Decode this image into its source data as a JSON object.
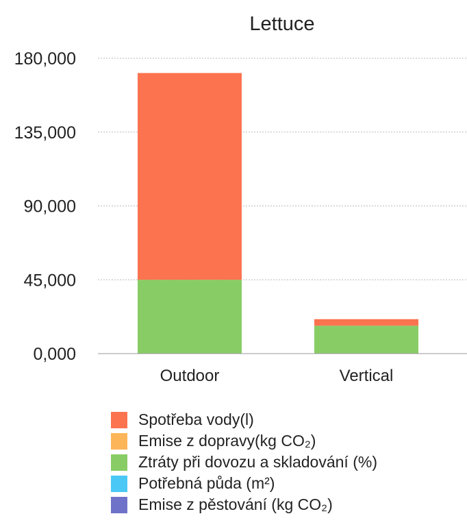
{
  "chart_data": {
    "type": "bar",
    "stacked": true,
    "title": "Lettuce",
    "categories": [
      "Outdoor",
      "Vertical"
    ],
    "ylim": [
      0,
      180000
    ],
    "y_ticks": [
      "0,000",
      "45,000",
      "90,000",
      "135,000",
      "180,000"
    ],
    "y_tick_values": [
      0,
      45000,
      90000,
      135000,
      180000
    ],
    "grid": "horizontal-dotted",
    "legend_position": "bottom",
    "series": [
      {
        "name": "Spotřeba vody(l)",
        "color": "#FC7350",
        "values": [
          126000,
          4000
        ]
      },
      {
        "name": "Emise z dopravy(kg CO₂)",
        "color": "#FDB55A",
        "values": [
          0,
          0
        ]
      },
      {
        "name": "Ztráty při dovozu a skladování (%)",
        "color": "#88CC66",
        "values": [
          45000,
          17000
        ]
      },
      {
        "name": "Potřebná půda (m²)",
        "color": "#4BC8F5",
        "values": [
          0,
          0
        ]
      },
      {
        "name": "Emise z pěstování (kg CO₂)",
        "color": "#6E72C8",
        "values": [
          0,
          0
        ]
      }
    ],
    "stack_order": [
      4,
      3,
      2,
      1,
      0
    ]
  }
}
